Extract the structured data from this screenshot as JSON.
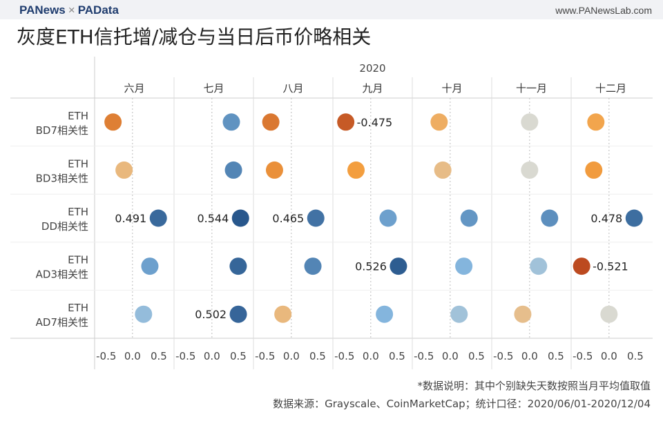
{
  "header": {
    "logo_left": "PANews",
    "logo_sep": "×",
    "logo_right": "PAData",
    "url": "www.PANewsLab.com"
  },
  "title": "灰度ETH信托增/减仓与当日后币价略相关",
  "notes": [
    "*数据说明：其中个别缺失天数按照当月平均值取值",
    "数据来源：Grayscale、CoinMarketCap；统计口径：2020/06/01-2020/12/04"
  ],
  "chart_data": {
    "type": "scatter",
    "year_label": "2020",
    "columns": [
      "六月",
      "七月",
      "八月",
      "九月",
      "十月",
      "十一月",
      "十二月"
    ],
    "rows": [
      {
        "label": [
          "ETH",
          "BD7相关性"
        ],
        "values": [
          -0.37,
          0.37,
          -0.39,
          -0.475,
          -0.21,
          0.0,
          -0.25
        ]
      },
      {
        "label": [
          "ETH",
          "BD3相关性"
        ],
        "values": [
          -0.16,
          0.41,
          -0.32,
          -0.28,
          -0.14,
          0.0,
          -0.29
        ]
      },
      {
        "label": [
          "ETH",
          "DD相关性"
        ],
        "values": [
          0.491,
          0.544,
          0.465,
          0.33,
          0.36,
          0.38,
          0.478
        ]
      },
      {
        "label": [
          "ETH",
          "AD3相关性"
        ],
        "values": [
          0.33,
          0.5,
          0.41,
          0.526,
          0.26,
          0.17,
          -0.521
        ]
      },
      {
        "label": [
          "ETH",
          "AD7相关性"
        ],
        "values": [
          0.21,
          0.502,
          -0.16,
          0.26,
          0.17,
          -0.13,
          0.0
        ]
      }
    ],
    "data_labels": [
      {
        "row": 0,
        "col": 3,
        "text": "-0.475",
        "side": "right"
      },
      {
        "row": 2,
        "col": 0,
        "text": "0.491",
        "side": "left"
      },
      {
        "row": 2,
        "col": 1,
        "text": "0.544",
        "side": "left"
      },
      {
        "row": 2,
        "col": 2,
        "text": "0.465",
        "side": "left"
      },
      {
        "row": 2,
        "col": 6,
        "text": "0.478",
        "side": "left"
      },
      {
        "row": 3,
        "col": 3,
        "text": "0.526",
        "side": "left"
      },
      {
        "row": 3,
        "col": 6,
        "text": "-0.521",
        "side": "right"
      },
      {
        "row": 4,
        "col": 1,
        "text": "0.502",
        "side": "left"
      }
    ],
    "xticks": [
      "-0.5",
      "0.0",
      "0.5"
    ],
    "xtick_values": [
      -0.5,
      0,
      0.5
    ],
    "xlim": [
      -0.72,
      0.79
    ],
    "color_scale": {
      "negative": "#b5401c",
      "mid": "#d9d9d1",
      "positive": "#26558a"
    },
    "grid": true,
    "legend": "none"
  }
}
